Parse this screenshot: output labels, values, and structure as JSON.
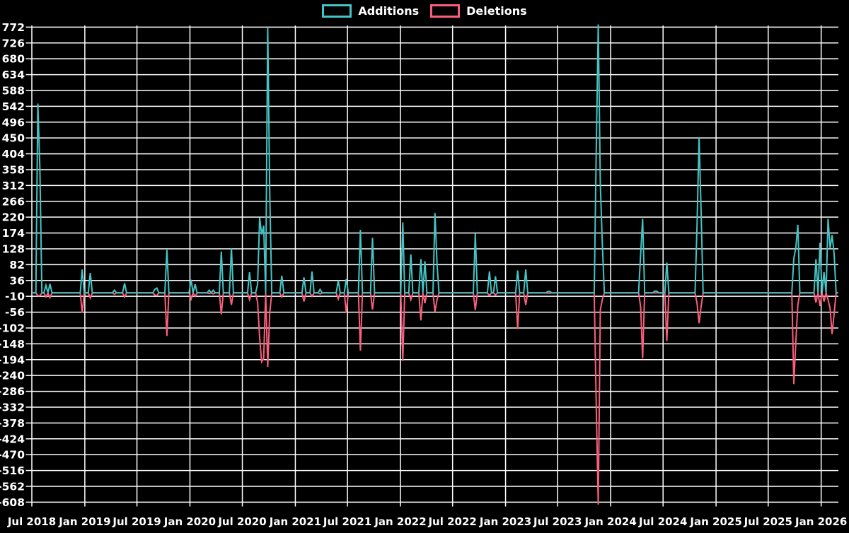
{
  "colors": {
    "additions": "#44c4c4",
    "deletions": "#fb5e7d",
    "grid": "#ffffff",
    "background": "#000000",
    "text": "#ffffff"
  },
  "legend": {
    "additions_label": "Additions",
    "deletions_label": "Deletions"
  },
  "chart_data": {
    "type": "line",
    "title": "",
    "xlabel": "",
    "ylabel": "",
    "legend_position": "top-center",
    "grid": true,
    "background": "#000000",
    "y_axis": {
      "ticks": [
        772,
        726,
        680,
        634,
        588,
        542,
        496,
        450,
        404,
        358,
        312,
        266,
        220,
        174,
        128,
        82,
        36,
        -10,
        -56,
        -102,
        -148,
        -194,
        -240,
        -286,
        -332,
        -378,
        -424,
        -470,
        -516,
        -562,
        -608
      ],
      "min": -620,
      "max": 785
    },
    "x_axis": {
      "tick_labels": [
        "Jul 2018",
        "Jan 2019",
        "Jul 2019",
        "Jan 2020",
        "Jul 2020",
        "Jan 2021",
        "Jul 2021",
        "Jan 2022",
        "Jul 2022",
        "Jan 2023",
        "Jul 2023",
        "Jan 2024",
        "Jul 2024",
        "Jan 2025",
        "Jul 2025",
        "Jan 2026"
      ],
      "start": "2018-07-01",
      "end": "2026-03-01"
    },
    "series": [
      {
        "name": "Additions",
        "color": "#44c4c4"
      },
      {
        "name": "Deletions",
        "color": "#fb5e7d"
      }
    ],
    "sampling": "weekly",
    "default_value": 0,
    "events": [
      {
        "week": "2018-07-22",
        "additions": 550,
        "deletions": -8
      },
      {
        "week": "2018-07-29",
        "additions": 360,
        "deletions": -8
      },
      {
        "week": "2018-08-19",
        "additions": 22,
        "deletions": -12
      },
      {
        "week": "2018-09-02",
        "additions": 26,
        "deletions": -14
      },
      {
        "week": "2018-12-23",
        "additions": 68,
        "deletions": -58
      },
      {
        "week": "2019-01-20",
        "additions": 58,
        "deletions": -15
      },
      {
        "week": "2019-04-14",
        "additions": 8,
        "deletions": -4
      },
      {
        "week": "2019-05-19",
        "additions": 28,
        "deletions": -12
      },
      {
        "week": "2019-09-01",
        "additions": 10,
        "deletions": -6
      },
      {
        "week": "2019-09-08",
        "additions": 14,
        "deletions": -8
      },
      {
        "week": "2019-10-13",
        "additions": 125,
        "deletions": -125
      },
      {
        "week": "2020-01-05",
        "additions": 38,
        "deletions": -18
      },
      {
        "week": "2020-01-19",
        "additions": 25,
        "deletions": -10
      },
      {
        "week": "2020-03-08",
        "additions": 8,
        "deletions": -2
      },
      {
        "week": "2020-03-22",
        "additions": 8,
        "deletions": -3
      },
      {
        "week": "2020-04-19",
        "additions": 120,
        "deletions": -62
      },
      {
        "week": "2020-05-24",
        "additions": 130,
        "deletions": -35
      },
      {
        "week": "2020-07-26",
        "additions": 60,
        "deletions": -20
      },
      {
        "week": "2020-08-23",
        "additions": 25,
        "deletions": -28
      },
      {
        "week": "2020-08-30",
        "additions": 218,
        "deletions": -130
      },
      {
        "week": "2020-09-06",
        "additions": 170,
        "deletions": -200
      },
      {
        "week": "2020-09-13",
        "additions": 195,
        "deletions": -190
      },
      {
        "week": "2020-09-27",
        "additions": 772,
        "deletions": -215
      },
      {
        "week": "2020-10-04",
        "additions": 300,
        "deletions": -60
      },
      {
        "week": "2020-11-15",
        "additions": 50,
        "deletions": -12
      },
      {
        "week": "2021-01-31",
        "additions": 45,
        "deletions": -25
      },
      {
        "week": "2021-02-28",
        "additions": 62,
        "deletions": -10
      },
      {
        "week": "2021-03-28",
        "additions": 10,
        "deletions": -3
      },
      {
        "week": "2021-05-30",
        "additions": 36,
        "deletions": -18
      },
      {
        "week": "2021-06-27",
        "additions": 40,
        "deletions": -58
      },
      {
        "week": "2021-08-15",
        "additions": 183,
        "deletions": -168
      },
      {
        "week": "2021-09-26",
        "additions": 160,
        "deletions": -48
      },
      {
        "week": "2022-01-09",
        "additions": 205,
        "deletions": -198
      },
      {
        "week": "2022-02-06",
        "additions": 112,
        "deletions": -20
      },
      {
        "week": "2022-03-13",
        "additions": 98,
        "deletions": -80
      },
      {
        "week": "2022-03-27",
        "additions": 92,
        "deletions": -30
      },
      {
        "week": "2022-05-01",
        "additions": 232,
        "deletions": -55
      },
      {
        "week": "2022-05-08",
        "additions": 85,
        "deletions": -20
      },
      {
        "week": "2022-09-18",
        "additions": 172,
        "deletions": -50
      },
      {
        "week": "2022-11-06",
        "additions": 62,
        "deletions": -8
      },
      {
        "week": "2022-11-27",
        "additions": 48,
        "deletions": -6
      },
      {
        "week": "2023-02-12",
        "additions": 65,
        "deletions": -105
      },
      {
        "week": "2023-03-12",
        "additions": 68,
        "deletions": -35
      },
      {
        "week": "2023-05-28",
        "additions": 4,
        "deletions": -1
      },
      {
        "week": "2023-06-04",
        "additions": 4,
        "deletions": -1
      },
      {
        "week": "2023-11-12",
        "additions": 420,
        "deletions": -335
      },
      {
        "week": "2023-11-19",
        "additions": 780,
        "deletions": -615
      },
      {
        "week": "2023-11-26",
        "additions": 318,
        "deletions": -50
      },
      {
        "week": "2023-12-03",
        "additions": 145,
        "deletions": -20
      },
      {
        "week": "2024-04-14",
        "additions": 112,
        "deletions": -40
      },
      {
        "week": "2024-04-21",
        "additions": 215,
        "deletions": -190
      },
      {
        "week": "2024-06-02",
        "additions": 5,
        "deletions": 0
      },
      {
        "week": "2024-06-09",
        "additions": 5,
        "deletions": 0
      },
      {
        "week": "2024-07-14",
        "additions": 88,
        "deletions": -140
      },
      {
        "week": "2024-10-27",
        "additions": 195,
        "deletions": -30
      },
      {
        "week": "2024-11-03",
        "additions": 452,
        "deletions": -88
      },
      {
        "week": "2024-11-10",
        "additions": 240,
        "deletions": -40
      },
      {
        "week": "2025-09-28",
        "additions": 100,
        "deletions": -265
      },
      {
        "week": "2025-10-05",
        "additions": 132,
        "deletions": -140
      },
      {
        "week": "2025-10-12",
        "additions": 198,
        "deletions": -35
      },
      {
        "week": "2025-12-14",
        "additions": 98,
        "deletions": -28
      },
      {
        "week": "2025-12-28",
        "additions": 145,
        "deletions": -38
      },
      {
        "week": "2026-01-11",
        "additions": 60,
        "deletions": -25
      },
      {
        "week": "2026-01-25",
        "additions": 215,
        "deletions": -20
      },
      {
        "week": "2026-02-01",
        "additions": 130,
        "deletions": -45
      },
      {
        "week": "2026-02-08",
        "additions": 168,
        "deletions": -120
      },
      {
        "week": "2026-02-15",
        "additions": 113,
        "deletions": -60
      }
    ]
  }
}
